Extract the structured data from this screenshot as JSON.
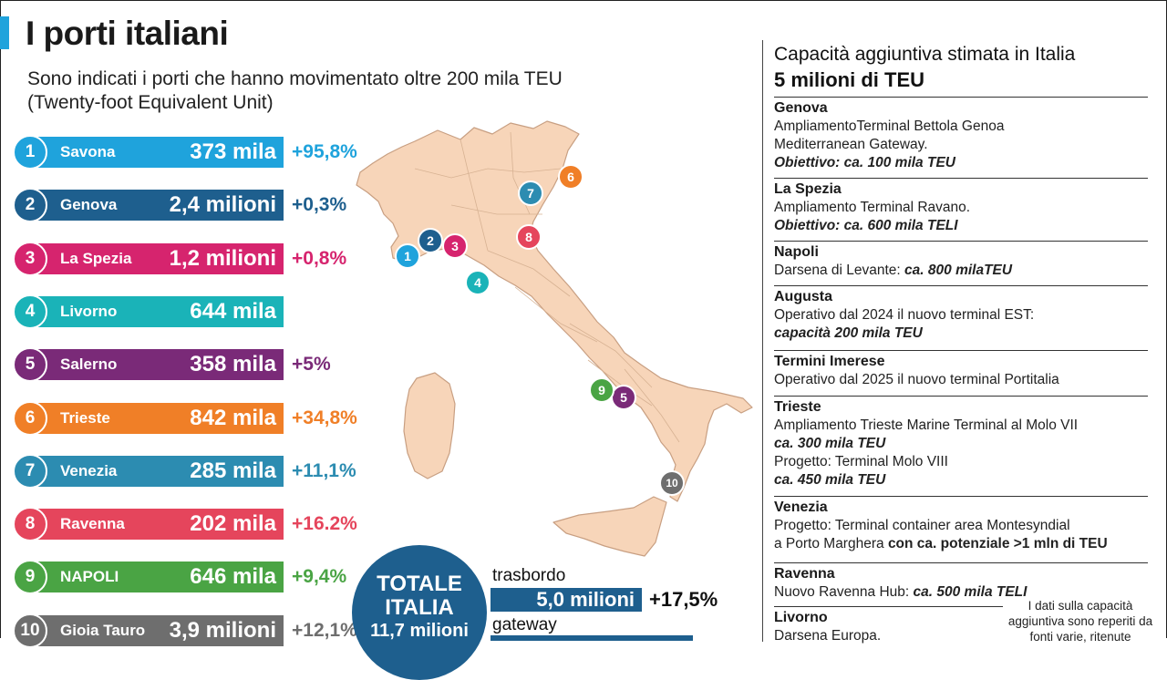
{
  "title": "I porti italiani",
  "subtitle": "Sono indicati i porti che hanno movimentato oltre 200 mila TEU (Twenty-foot Equivalent Unit)",
  "ports": [
    {
      "num": "1",
      "name": "Savona",
      "value": "373 mila",
      "pct": "+95,8%",
      "color": "#1fa3dc"
    },
    {
      "num": "2",
      "name": "Genova",
      "value": "2,4 milioni",
      "pct": "+0,3%",
      "color": "#1e5f8e"
    },
    {
      "num": "3",
      "name": "La Spezia",
      "value": "1,2 milioni",
      "pct": "+0,8%",
      "color": "#d6246e"
    },
    {
      "num": "4",
      "name": "Livorno",
      "value": "644 mila",
      "pct": "",
      "color": "#1ab3b8"
    },
    {
      "num": "5",
      "name": "Salerno",
      "value": "358 mila",
      "pct": "+5%",
      "color": "#7a2a78"
    },
    {
      "num": "6",
      "name": "Trieste",
      "value": "842 mila",
      "pct": "+34,8%",
      "color": "#f07f27"
    },
    {
      "num": "7",
      "name": "Venezia",
      "value": "285 mila",
      "pct": "+11,1%",
      "color": "#2c8cb1"
    },
    {
      "num": "8",
      "name": "Ravenna",
      "value": "202 mila",
      "pct": "+16.2%",
      "color": "#e5455c"
    },
    {
      "num": "9",
      "name": "NAPOLI",
      "value": "646 mila",
      "pct": "+9,4%",
      "color": "#4aa444"
    },
    {
      "num": "10",
      "name": "Gioia Tauro",
      "value": "3,9 milioni",
      "pct": "+12,1%",
      "color": "#6e6e6e"
    }
  ],
  "totale": {
    "line1": "TOTALE",
    "line2": "ITALIA",
    "line3": "11,7 milioni"
  },
  "trasbordo": {
    "label": "trasbordo",
    "value": "5,0 milioni",
    "pct": "+17,5%"
  },
  "gateway": {
    "label": "gateway"
  },
  "right": {
    "heading": "Capacità aggiuntiva stimata in Italia",
    "subheading": "5 milioni di TEU",
    "entries": [
      {
        "title": "Genova",
        "lines": [
          "AmpliamentoTerminal Bettola Genoa",
          "Mediterranean Gateway."
        ],
        "bold": "Obiettivo: ca. 100 mila TEU"
      },
      {
        "title": "La Spezia",
        "lines": [
          "Ampliamento Terminal Ravano."
        ],
        "bold": "Obiettivo: ca. 600 mila TELI"
      },
      {
        "title": "Napoli",
        "lines": [
          "Darsena di Levante:"
        ],
        "inline_bold": "ca. 800 milaTEU"
      },
      {
        "title": "Augusta",
        "lines": [
          "Operativo dal 2024 il nuovo terminal EST:"
        ],
        "bold": "capacità 200 mila TEU"
      },
      {
        "title": "Termini Imerese",
        "lines": [
          "Operativo dal 2025 il nuovo terminal Portitalia"
        ]
      },
      {
        "title": "Trieste",
        "lines": [
          "Ampliamento Trieste Marine Terminal al Molo VII"
        ],
        "bold": "ca. 300 mila TEU",
        "lines2": [
          "Progetto: Terminal Molo VIII"
        ],
        "bold2": "ca. 450 mila TEU"
      },
      {
        "title": "Venezia",
        "lines": [
          "Progetto: Terminal container area Montesyndial"
        ],
        "mixed_pre": "a Porto Marghera ",
        "mixed_bold": "con ca. potenziale >1 mln di TEU"
      },
      {
        "title": "Ravenna",
        "lines": [
          "Nuovo Ravenna Hub:"
        ],
        "inline_bold": "ca. 500 mila TELI"
      },
      {
        "title": "Livorno",
        "lines": [
          "Darsena Europa."
        ]
      }
    ],
    "note": "I dati sulla capacità aggiuntiva sono reperiti da fonti varie, ritenute"
  }
}
